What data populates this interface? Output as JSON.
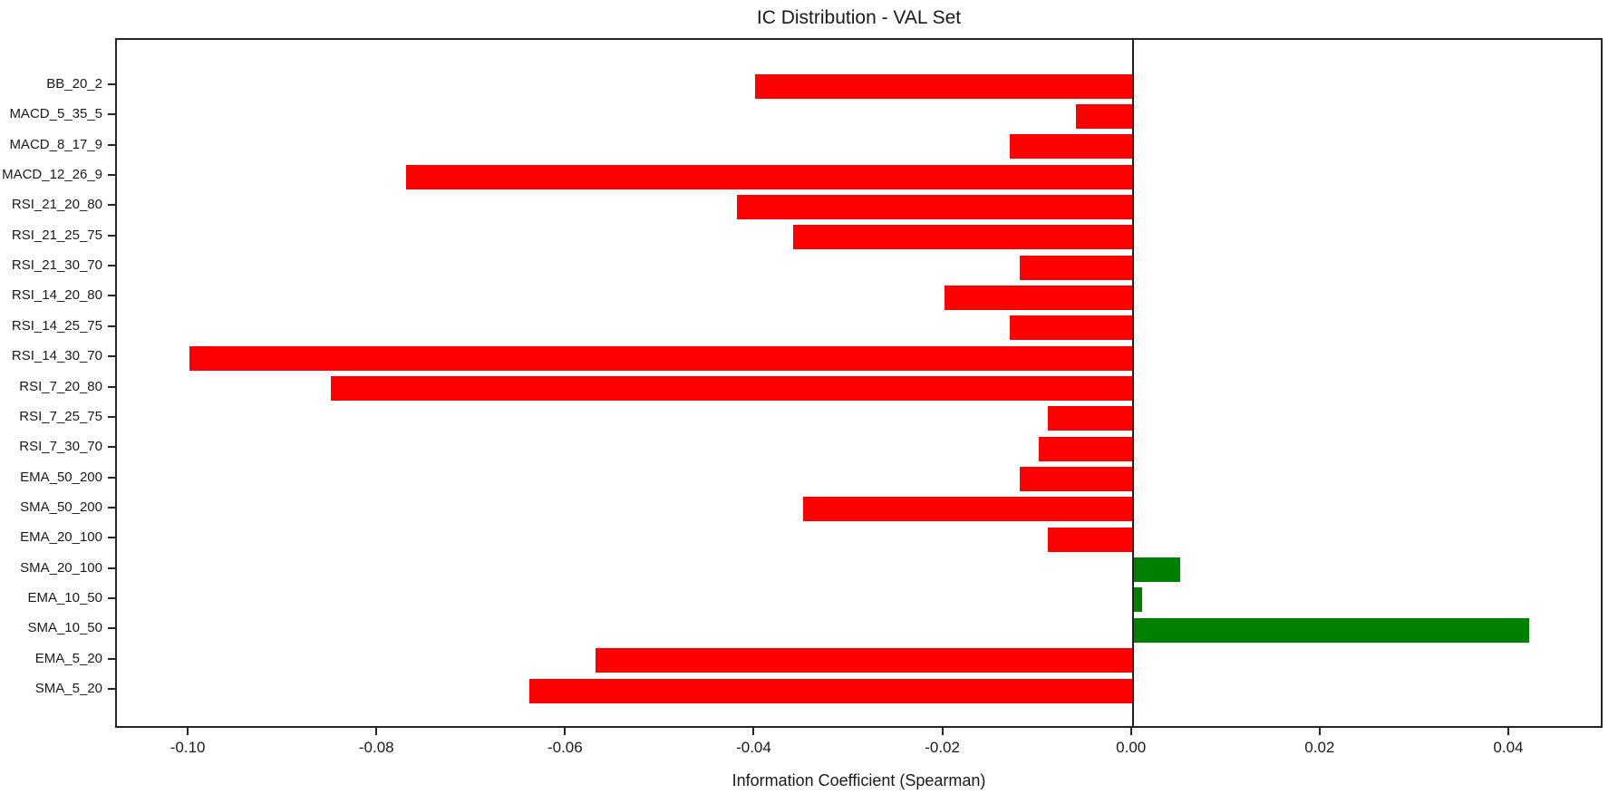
{
  "chart_data": {
    "type": "bar",
    "orientation": "horizontal",
    "title": "IC Distribution - VAL Set",
    "xlabel": "Information Coefficient (Spearman)",
    "ylabel": "",
    "categories_top_to_bottom": [
      "BB_20_2",
      "MACD_5_35_5",
      "MACD_8_17_9",
      "MACD_12_26_9",
      "RSI_21_20_80",
      "RSI_21_25_75",
      "RSI_21_30_70",
      "RSI_14_20_80",
      "RSI_14_25_75",
      "RSI_14_30_70",
      "RSI_7_20_80",
      "RSI_7_25_75",
      "RSI_7_30_70",
      "EMA_50_200",
      "SMA_50_200",
      "EMA_20_100",
      "SMA_20_100",
      "EMA_10_50",
      "SMA_10_50",
      "EMA_5_20",
      "SMA_5_20"
    ],
    "values": [
      -0.04,
      -0.006,
      -0.013,
      -0.077,
      -0.042,
      -0.036,
      -0.012,
      -0.02,
      -0.013,
      -0.1,
      -0.085,
      -0.009,
      -0.01,
      -0.012,
      -0.035,
      -0.009,
      0.005,
      0.001,
      0.042,
      -0.057,
      -0.064
    ],
    "xlim": [
      -0.1077,
      0.05
    ],
    "xticks": [
      -0.1,
      -0.08,
      -0.06,
      -0.04,
      -0.02,
      0.0,
      0.02,
      0.04
    ],
    "xtick_labels": [
      "-0.10",
      "-0.08",
      "-0.06",
      "-0.04",
      "-0.02",
      "0.00",
      "0.02",
      "0.04"
    ],
    "grid": false,
    "legend": null,
    "zero_line": true,
    "colors": {
      "negative": "#ff0000",
      "positive": "#008000",
      "zero_line": "#1f1f1f",
      "spine": "#262626",
      "text": "#1a1a1a"
    }
  }
}
